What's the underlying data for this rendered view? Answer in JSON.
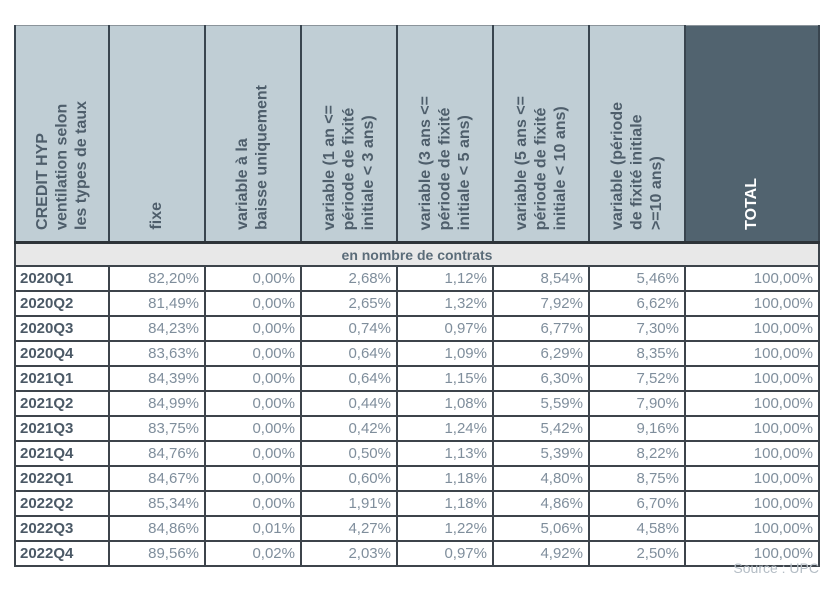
{
  "table": {
    "corner_header": "CREDIT HYP\nventilation selon\nles types de taux",
    "column_headers": [
      "fixe",
      "variable à la\nbaisse uniquement",
      "variable (1 an <=\npériode de fixité\ninitiale < 3 ans)",
      "variable (3 ans <=\npériode de fixité\ninitiale < 5 ans)",
      "variable (5 ans <=\npériode de fixité\ninitiale < 10 ans)",
      "variable (période\nde fixité initiale\n>=10 ans)",
      "TOTAL"
    ],
    "section_header": "en nombre de contrats",
    "rows": [
      {
        "label": "2020Q1",
        "values": [
          "82,20%",
          "0,00%",
          "2,68%",
          "1,12%",
          "8,54%",
          "5,46%",
          "100,00%"
        ]
      },
      {
        "label": "2020Q2",
        "values": [
          "81,49%",
          "0,00%",
          "2,65%",
          "1,32%",
          "7,92%",
          "6,62%",
          "100,00%"
        ]
      },
      {
        "label": "2020Q3",
        "values": [
          "84,23%",
          "0,00%",
          "0,74%",
          "0,97%",
          "6,77%",
          "7,30%",
          "100,00%"
        ]
      },
      {
        "label": "2020Q4",
        "values": [
          "83,63%",
          "0,00%",
          "0,64%",
          "1,09%",
          "6,29%",
          "8,35%",
          "100,00%"
        ]
      },
      {
        "label": "2021Q1",
        "values": [
          "84,39%",
          "0,00%",
          "0,64%",
          "1,15%",
          "6,30%",
          "7,52%",
          "100,00%"
        ]
      },
      {
        "label": "2021Q2",
        "values": [
          "84,99%",
          "0,00%",
          "0,44%",
          "1,08%",
          "5,59%",
          "7,90%",
          "100,00%"
        ]
      },
      {
        "label": "2021Q3",
        "values": [
          "83,75%",
          "0,00%",
          "0,42%",
          "1,24%",
          "5,42%",
          "9,16%",
          "100,00%"
        ]
      },
      {
        "label": "2021Q4",
        "values": [
          "84,76%",
          "0,00%",
          "0,50%",
          "1,13%",
          "5,39%",
          "8,22%",
          "100,00%"
        ]
      },
      {
        "label": "2022Q1",
        "values": [
          "84,67%",
          "0,00%",
          "0,60%",
          "1,18%",
          "4,80%",
          "8,75%",
          "100,00%"
        ]
      },
      {
        "label": "2022Q2",
        "values": [
          "85,34%",
          "0,00%",
          "1,91%",
          "1,18%",
          "4,86%",
          "6,70%",
          "100,00%"
        ]
      },
      {
        "label": "2022Q3",
        "values": [
          "84,86%",
          "0,01%",
          "4,27%",
          "1,22%",
          "5,06%",
          "4,58%",
          "100,00%"
        ]
      },
      {
        "label": "2022Q4",
        "values": [
          "89,56%",
          "0,02%",
          "2,03%",
          "0,97%",
          "4,92%",
          "2,50%",
          "100,00%"
        ]
      }
    ]
  },
  "chart_data": {
    "type": "table",
    "title": "CREDIT HYP ventilation selon les types de taux — en nombre de contrats",
    "categories": [
      "2020Q1",
      "2020Q2",
      "2020Q3",
      "2020Q4",
      "2021Q1",
      "2021Q2",
      "2021Q3",
      "2021Q4",
      "2022Q1",
      "2022Q2",
      "2022Q3",
      "2022Q4"
    ],
    "series": [
      {
        "name": "fixe",
        "values": [
          82.2,
          81.49,
          84.23,
          83.63,
          84.39,
          84.99,
          83.75,
          84.76,
          84.67,
          85.34,
          84.86,
          89.56
        ]
      },
      {
        "name": "variable à la baisse uniquement",
        "values": [
          0.0,
          0.0,
          0.0,
          0.0,
          0.0,
          0.0,
          0.0,
          0.0,
          0.0,
          0.0,
          0.01,
          0.02
        ]
      },
      {
        "name": "variable (1 an <= période de fixité initiale < 3 ans)",
        "values": [
          2.68,
          2.65,
          0.74,
          0.64,
          0.64,
          0.44,
          0.42,
          0.5,
          0.6,
          1.91,
          4.27,
          2.03
        ]
      },
      {
        "name": "variable (3 ans <= période de fixité initiale < 5 ans)",
        "values": [
          1.12,
          1.32,
          0.97,
          1.09,
          1.15,
          1.08,
          1.24,
          1.13,
          1.18,
          1.18,
          1.22,
          0.97
        ]
      },
      {
        "name": "variable (5 ans <= période de fixité initiale < 10 ans)",
        "values": [
          8.54,
          7.92,
          6.77,
          6.29,
          6.3,
          5.59,
          5.42,
          5.39,
          4.8,
          4.86,
          5.06,
          4.92
        ]
      },
      {
        "name": "variable (période de fixité initiale >=10 ans)",
        "values": [
          5.46,
          6.62,
          7.3,
          8.35,
          7.52,
          7.9,
          9.16,
          8.22,
          8.75,
          6.7,
          4.58,
          2.5
        ]
      },
      {
        "name": "TOTAL",
        "values": [
          100.0,
          100.0,
          100.0,
          100.0,
          100.0,
          100.0,
          100.0,
          100.0,
          100.0,
          100.0,
          100.0,
          100.0
        ]
      }
    ],
    "unit": "%"
  },
  "source_note": "Source : UPC",
  "colors": {
    "header_bg": "#c0ced5",
    "header_text": "#4e5e6b",
    "total_header_bg": "#51636f",
    "total_header_text": "#ffffff",
    "section_bg": "#e8e8e8",
    "section_text": "#5b6c79",
    "value_text": "#7f8e9c",
    "label_text": "#4b5966",
    "grid_border": "#3d444b",
    "source_text": "#b4bdc5"
  }
}
